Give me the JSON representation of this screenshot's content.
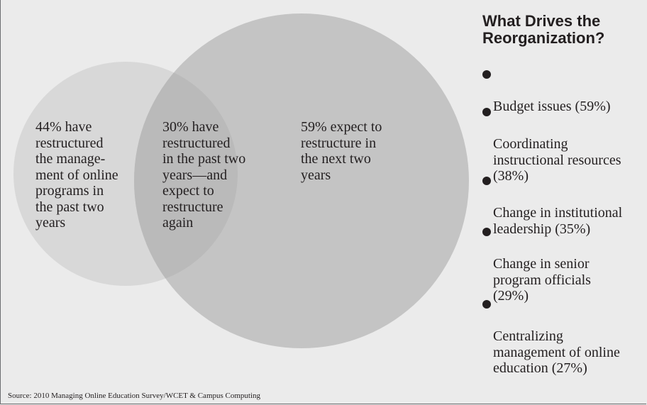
{
  "venn": {
    "left_only": "44% have\nrestructured\nthe manage-\nment of online\nprograms in\nthe past two\nyears",
    "overlap": "30% have\nrestructured\nin the past two\nyears—and\nexpect to\nrestructure\nagain",
    "right_only": "59% expect to\nrestructure in\nthe next two\nyears",
    "colors": {
      "left": "#d8d8d8",
      "right": "#c4c4c4",
      "overlap": "#bababa",
      "background": "#ebebeb"
    }
  },
  "sidebar": {
    "title": "What Drives the\nReorganization?",
    "items": [
      {
        "label": "Budget issues (59%)"
      },
      {
        "label": "Coordinating\ninstructional resources\n(38%)"
      },
      {
        "label": "Change in institutional\nleadership (35%)"
      },
      {
        "label": "Change in senior\nprogram officials\n(29%)"
      },
      {
        "label": "Centralizing\nmanagement of online\neducation (27%)"
      }
    ]
  },
  "source": "Source: 2010 Managing Online Education Survey/WCET & Campus Computing"
}
